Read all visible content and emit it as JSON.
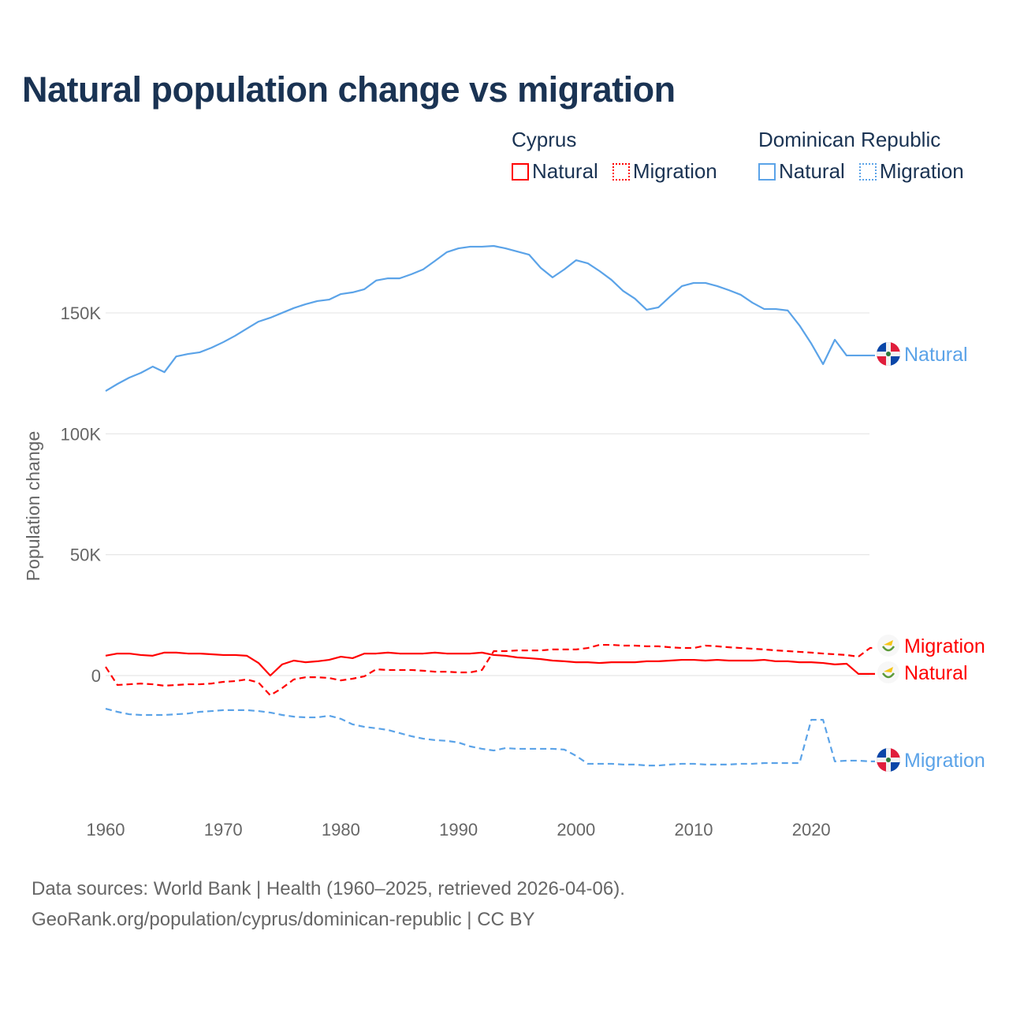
{
  "title": "Natural population change vs migration",
  "legend": {
    "groups": [
      {
        "name": "Cyprus",
        "color": "#ff0000",
        "items": [
          "Natural",
          "Migration"
        ]
      },
      {
        "name": "Dominican Republic",
        "color": "#5ba3e8",
        "items": [
          "Natural",
          "Migration"
        ]
      }
    ]
  },
  "footer": {
    "line1": "Data sources: World Bank | Health (1960–2025, retrieved 2026-04-06).",
    "line2": "GeoRank.org/population/cyprus/dominican-republic | CC BY"
  },
  "chart_data": {
    "type": "line",
    "title": "Natural population change vs migration",
    "xlabel": "",
    "ylabel": "Population change",
    "x_start": 1960,
    "x_end": 2025,
    "xlim": [
      1960,
      2025
    ],
    "ylim": [
      -45000,
      185000
    ],
    "x_ticks": [
      "1960",
      "1970",
      "1980",
      "1990",
      "2000",
      "2010",
      "2020"
    ],
    "y_ticks": [
      {
        "value": 0,
        "label": "0"
      },
      {
        "value": 50000,
        "label": "50K"
      },
      {
        "value": 100000,
        "label": "100K"
      },
      {
        "value": 150000,
        "label": "150K"
      }
    ],
    "grid": true,
    "series": [
      {
        "name": "Natural",
        "country": "Dominican Republic",
        "end_label": "Natural",
        "color": "#5ba3e8",
        "dash": false,
        "flag": "dominican-republic",
        "values": [
          117.7,
          120.6,
          123.2,
          125.2,
          127.8,
          125.5,
          132,
          133,
          133.7,
          135.6,
          137.9,
          140.5,
          143.5,
          146.4,
          148,
          150,
          152,
          153.6,
          154.9,
          155.5,
          157.8,
          158.5,
          159.8,
          163.4,
          164.3,
          164.3,
          166,
          168,
          171.5,
          175.1,
          176.7,
          177.4,
          177.4,
          177.7,
          176.7,
          175.4,
          174.1,
          168.6,
          164.7,
          168,
          171.8,
          170.5,
          167.3,
          163.7,
          159.1,
          155.9,
          151.3,
          152.3,
          156.8,
          161.1,
          162.4,
          162.4,
          161.1,
          159.4,
          157.5,
          154.2,
          151.6,
          151.6,
          151,
          144.8,
          137.3,
          128.8,
          138.9,
          132.4,
          132.4,
          132.4
        ]
      },
      {
        "name": "Migration",
        "country": "Dominican Republic",
        "end_label": "Migration",
        "color": "#5ba3e8",
        "dash": true,
        "flag": "dominican-republic",
        "values": [
          -13.7,
          -15,
          -16,
          -16.3,
          -16.3,
          -16.3,
          -16,
          -15.7,
          -15,
          -14.7,
          -14.3,
          -14.3,
          -14.3,
          -14.7,
          -15.3,
          -16.3,
          -17,
          -17.3,
          -17.3,
          -16.6,
          -17.9,
          -20.2,
          -21.2,
          -21.8,
          -22.5,
          -23.8,
          -25.1,
          -26.1,
          -26.7,
          -27,
          -27.7,
          -29.3,
          -30.3,
          -31,
          -30,
          -30.3,
          -30.3,
          -30.3,
          -30.3,
          -30.6,
          -33.2,
          -36.5,
          -36.5,
          -36.5,
          -36.8,
          -36.8,
          -37.2,
          -37.2,
          -36.8,
          -36.5,
          -36.5,
          -36.8,
          -36.8,
          -36.8,
          -36.5,
          -36.5,
          -36.2,
          -36.2,
          -36.2,
          -36.2,
          -18.3,
          -18.3,
          -35.5,
          -35.2,
          -35.2,
          -35.5
        ]
      },
      {
        "name": "Natural",
        "country": "Cyprus",
        "end_label": "Natural",
        "color": "#ff0000",
        "dash": false,
        "flag": "cyprus",
        "values": [
          8.2,
          9.1,
          9.1,
          8.5,
          8.2,
          9.5,
          9.5,
          9.1,
          9.1,
          8.8,
          8.5,
          8.5,
          8.2,
          5.2,
          0,
          4.6,
          6.2,
          5.5,
          5.9,
          6.5,
          7.8,
          7.2,
          9.1,
          9.1,
          9.5,
          9.1,
          9.1,
          9.1,
          9.5,
          9.1,
          9.1,
          9.1,
          9.5,
          8.5,
          8.2,
          7.5,
          7.2,
          6.8,
          6.2,
          5.9,
          5.5,
          5.5,
          5.2,
          5.5,
          5.5,
          5.5,
          5.9,
          5.9,
          6.2,
          6.5,
          6.5,
          6.2,
          6.5,
          6.2,
          6.2,
          6.2,
          6.5,
          5.9,
          5.9,
          5.5,
          5.5,
          5.2,
          4.6,
          4.9,
          0.7,
          0.7
        ]
      },
      {
        "name": "Migration",
        "country": "Cyprus",
        "end_label": "Migration",
        "color": "#ff0000",
        "dash": true,
        "flag": "cyprus",
        "values": [
          3.6,
          -3.9,
          -3.6,
          -3.3,
          -3.6,
          -4.2,
          -3.9,
          -3.6,
          -3.6,
          -3.3,
          -2.6,
          -2.3,
          -1.6,
          -2.9,
          -8.2,
          -5.2,
          -1.6,
          -0.7,
          -0.7,
          -1,
          -2,
          -1.3,
          -0.3,
          2.6,
          2.3,
          2.3,
          2.3,
          2,
          1.6,
          1.6,
          1.3,
          1.3,
          2.3,
          10.1,
          10.1,
          10.4,
          10.4,
          10.4,
          10.8,
          10.8,
          10.8,
          11.4,
          12.7,
          12.7,
          12.4,
          12.4,
          12.1,
          12.1,
          11.7,
          11.4,
          11.4,
          12.4,
          12.1,
          11.7,
          11.4,
          11.1,
          10.8,
          10.4,
          10.1,
          9.8,
          9.5,
          9.1,
          8.8,
          8.5,
          7.8,
          11.4
        ]
      }
    ],
    "value_unit": "thousands"
  }
}
